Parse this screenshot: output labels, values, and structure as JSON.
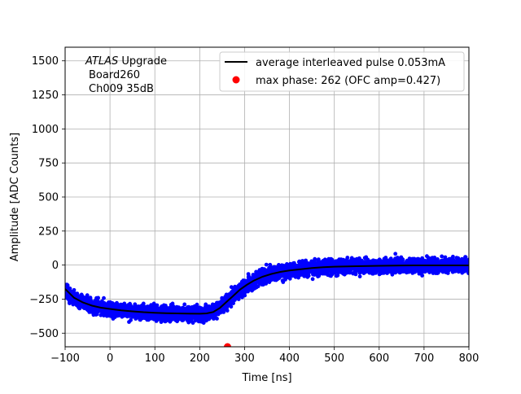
{
  "chart_data": {
    "type": "scatter",
    "annotation": {
      "italic": "ATLAS",
      "line1_rest": " Upgrade",
      "line2": "Board260",
      "line3": "Ch009 35dB"
    },
    "xlabel": "Time [ns]",
    "ylabel": "Amplitude [ADC Counts]",
    "xlim": [
      -100,
      800
    ],
    "ylim": [
      -600,
      1600
    ],
    "x_ticks": [
      -100,
      0,
      100,
      200,
      300,
      400,
      500,
      600,
      700,
      800
    ],
    "y_ticks": [
      -500,
      -250,
      0,
      250,
      500,
      750,
      1000,
      1250,
      1500
    ],
    "grid": true,
    "legend_position": "top-right",
    "colors": {
      "line": "#000000",
      "scatter": "#0000ff",
      "max_point": "#ff0000"
    },
    "series": [
      {
        "name": "average interleaved pulse 0.053mA",
        "kind": "line",
        "x": [
          -100,
          -80,
          -60,
          -40,
          -20,
          0,
          25,
          50,
          75,
          100,
          125,
          150,
          175,
          200,
          215,
          230,
          245,
          260,
          275,
          290,
          305,
          320,
          340,
          360,
          380,
          400,
          425,
          450,
          475,
          500,
          550,
          600,
          650,
          700,
          750,
          800
        ],
        "y": [
          -175,
          -240,
          -275,
          -298,
          -313,
          -322,
          -333,
          -340,
          -346,
          -350,
          -353,
          -355,
          -356,
          -357,
          -355,
          -345,
          -315,
          -270,
          -225,
          -180,
          -145,
          -115,
          -85,
          -65,
          -50,
          -40,
          -30,
          -22,
          -16,
          -12,
          -8,
          -5,
          -3,
          -2,
          -2,
          -2
        ],
        "spread": 65
      },
      {
        "name": "max phase: 262 (OFC amp=0.427)",
        "kind": "point",
        "x": [
          262
        ],
        "y": [
          -600
        ]
      }
    ]
  }
}
